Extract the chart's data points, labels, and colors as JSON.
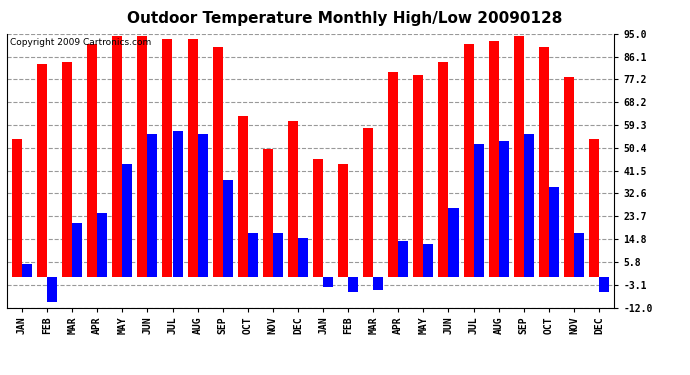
{
  "title": "Outdoor Temperature Monthly High/Low 20090128",
  "copyright": "Copyright 2009 Cartronics.com",
  "months": [
    "JAN",
    "FEB",
    "MAR",
    "APR",
    "MAY",
    "JUN",
    "JUL",
    "AUG",
    "SEP",
    "OCT",
    "NOV",
    "DEC",
    "JAN",
    "FEB",
    "MAR",
    "APR",
    "MAY",
    "JUN",
    "JUL",
    "AUG",
    "SEP",
    "OCT",
    "NOV",
    "DEC"
  ],
  "highs": [
    54,
    83,
    84,
    91,
    94,
    94,
    93,
    93,
    90,
    63,
    50,
    61,
    46,
    44,
    58,
    80,
    79,
    84,
    91,
    92,
    94,
    90,
    78,
    54
  ],
  "lows": [
    5,
    -10,
    21,
    25,
    44,
    56,
    57,
    56,
    38,
    17,
    17,
    15,
    -4,
    -6,
    -5,
    14,
    13,
    27,
    52,
    53,
    56,
    35,
    17,
    -6
  ],
  "bar_width": 0.4,
  "high_color": "#FF0000",
  "low_color": "#0000FF",
  "bg_color": "#FFFFFF",
  "grid_color": "#999999",
  "yticks": [
    95.0,
    86.1,
    77.2,
    68.2,
    59.3,
    50.4,
    41.5,
    32.6,
    23.7,
    14.8,
    5.8,
    -3.1,
    -12.0
  ],
  "ymin": -12.0,
  "ymax": 95.0,
  "title_fontsize": 11,
  "tick_fontsize": 7,
  "copyright_fontsize": 6.5
}
